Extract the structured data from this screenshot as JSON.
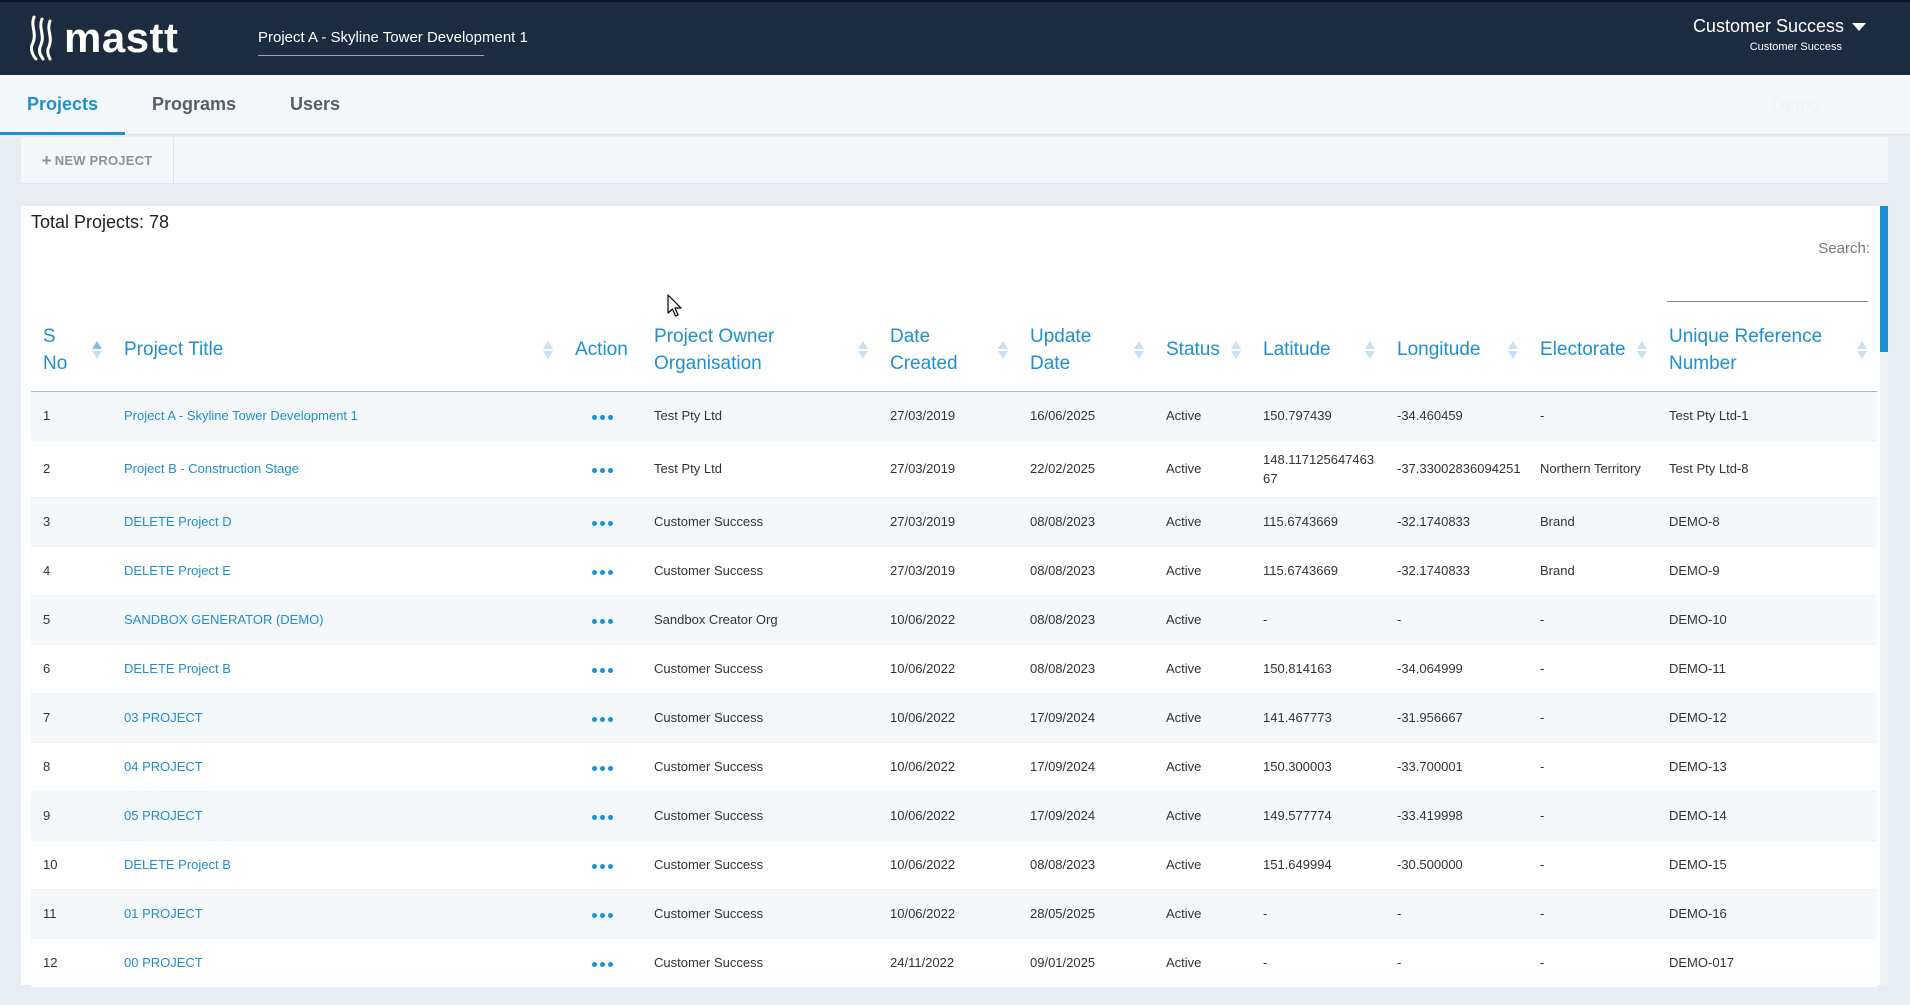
{
  "header": {
    "logo_text": "mastt",
    "project_selector": "Project A - Skyline Tower Development 1",
    "user_name": "Customer Success",
    "user_org": "Customer Success"
  },
  "nav": {
    "tabs": [
      {
        "label": "Projects",
        "active": true
      },
      {
        "label": "Programs",
        "active": false
      },
      {
        "label": "Users",
        "active": false
      }
    ],
    "faded_label": "Demo ..."
  },
  "toolbar": {
    "new_project_label": "NEW PROJECT"
  },
  "panel": {
    "total_label": "Total Projects: 78",
    "search_label": "Search:"
  },
  "table": {
    "columns": [
      "S No",
      "Project Title",
      "Action",
      "Project Owner Organisation",
      "Date Created",
      "Update Date",
      "Status",
      "Latitude",
      "Longitude",
      "Electorate",
      "Unique Reference Number"
    ],
    "rows": [
      {
        "sno": "1",
        "title": "Project A - Skyline Tower Development 1",
        "owner": "Test Pty Ltd",
        "created": "27/03/2019",
        "updated": "16/06/2025",
        "status": "Active",
        "lat": "150.797439",
        "lng": "-34.460459",
        "electorate": "-",
        "ref": "Test Pty Ltd-1"
      },
      {
        "sno": "2",
        "title": "Project B - Construction Stage",
        "owner": "Test Pty Ltd",
        "created": "27/03/2019",
        "updated": "22/02/2025",
        "status": "Active",
        "lat": "148.117125647463 67",
        "lng": "-37.33002836094251",
        "electorate": "Northern Territory",
        "ref": "Test Pty Ltd-8"
      },
      {
        "sno": "3",
        "title": "DELETE Project D",
        "owner": "Customer Success",
        "created": "27/03/2019",
        "updated": "08/08/2023",
        "status": "Active",
        "lat": "115.6743669",
        "lng": "-32.1740833",
        "electorate": "Brand",
        "ref": "DEMO-8"
      },
      {
        "sno": "4",
        "title": "DELETE Project E",
        "owner": "Customer Success",
        "created": "27/03/2019",
        "updated": "08/08/2023",
        "status": "Active",
        "lat": "115.6743669",
        "lng": "-32.1740833",
        "electorate": "Brand",
        "ref": "DEMO-9"
      },
      {
        "sno": "5",
        "title": "SANDBOX GENERATOR (DEMO)",
        "owner": "Sandbox Creator Org",
        "created": "10/06/2022",
        "updated": "08/08/2023",
        "status": "Active",
        "lat": "-",
        "lng": "-",
        "electorate": "-",
        "ref": "DEMO-10"
      },
      {
        "sno": "6",
        "title": "DELETE Project B",
        "owner": "Customer Success",
        "created": "10/06/2022",
        "updated": "08/08/2023",
        "status": "Active",
        "lat": "150.814163",
        "lng": "-34.064999",
        "electorate": "-",
        "ref": "DEMO-11"
      },
      {
        "sno": "7",
        "title": "03 PROJECT",
        "owner": "Customer Success",
        "created": "10/06/2022",
        "updated": "17/09/2024",
        "status": "Active",
        "lat": "141.467773",
        "lng": "-31.956667",
        "electorate": "-",
        "ref": "DEMO-12"
      },
      {
        "sno": "8",
        "title": "04 PROJECT",
        "owner": "Customer Success",
        "created": "10/06/2022",
        "updated": "17/09/2024",
        "status": "Active",
        "lat": "150.300003",
        "lng": "-33.700001",
        "electorate": "-",
        "ref": "DEMO-13"
      },
      {
        "sno": "9",
        "title": "05 PROJECT",
        "owner": "Customer Success",
        "created": "10/06/2022",
        "updated": "17/09/2024",
        "status": "Active",
        "lat": "149.577774",
        "lng": "-33.419998",
        "electorate": "-",
        "ref": "DEMO-14"
      },
      {
        "sno": "10",
        "title": "DELETE Project B",
        "owner": "Customer Success",
        "created": "10/06/2022",
        "updated": "08/08/2023",
        "status": "Active",
        "lat": "151.649994",
        "lng": "-30.500000",
        "electorate": "-",
        "ref": "DEMO-15"
      },
      {
        "sno": "11",
        "title": "01 PROJECT",
        "owner": "Customer Success",
        "created": "10/06/2022",
        "updated": "28/05/2025",
        "status": "Active",
        "lat": "-",
        "lng": "-",
        "electorate": "-",
        "ref": "DEMO-16"
      },
      {
        "sno": "12",
        "title": "00 PROJECT",
        "owner": "Customer Success",
        "created": "24/11/2022",
        "updated": "09/01/2025",
        "status": "Active",
        "lat": "-",
        "lng": "-",
        "electorate": "-",
        "ref": "DEMO-017"
      }
    ]
  },
  "colors": {
    "topbar": "#1c2b3e",
    "accent": "#1e8fd0",
    "stripe": "#f5f8fb"
  },
  "icons": {
    "logo": "mastt-flame-icon",
    "action": "more-dots-icon",
    "sort": "sort-arrows-icon",
    "user_menu": "caret-down-icon",
    "add": "plus-icon"
  }
}
